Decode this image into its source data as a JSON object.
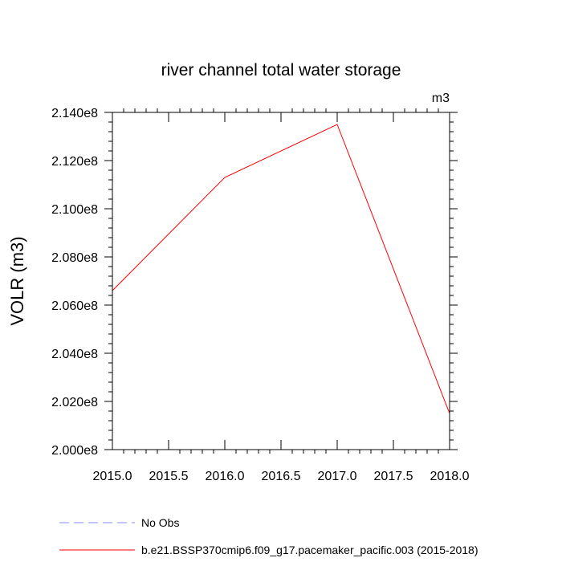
{
  "chart_data": {
    "type": "line",
    "title": "river channel total water storage",
    "units_label": "m3",
    "ylabel": "VOLR  (m3)",
    "xlabel": "",
    "xlim": [
      2015.0,
      2018.0
    ],
    "ylim": [
      200000000,
      214000000
    ],
    "x_ticks": [
      2015.0,
      2015.5,
      2016.0,
      2016.5,
      2017.0,
      2017.5,
      2018.0
    ],
    "x_tick_labels": [
      "2015.0",
      "2015.5",
      "2016.0",
      "2016.5",
      "2017.0",
      "2017.5",
      "2018.0"
    ],
    "y_ticks": [
      200000000,
      202000000,
      204000000,
      206000000,
      208000000,
      210000000,
      212000000,
      214000000
    ],
    "y_tick_labels": [
      "2.000e8",
      "2.020e8",
      "2.040e8",
      "2.060e8",
      "2.080e8",
      "2.100e8",
      "2.120e8",
      "2.140e8"
    ],
    "grid": false,
    "legend_position": "bottom",
    "series": [
      {
        "name": "No Obs",
        "color": "#8a8aff",
        "dash": "dashed",
        "x": [],
        "y": []
      },
      {
        "name": "b.e21.BSSP370cmip6.f09_g17.pacemaker_pacific.003 (2015-2018)",
        "color": "#ff0000",
        "dash": "solid",
        "x": [
          2015.0,
          2016.0,
          2017.0,
          2018.0
        ],
        "y": [
          206600000,
          211300000,
          213500000,
          201500000
        ]
      }
    ]
  }
}
